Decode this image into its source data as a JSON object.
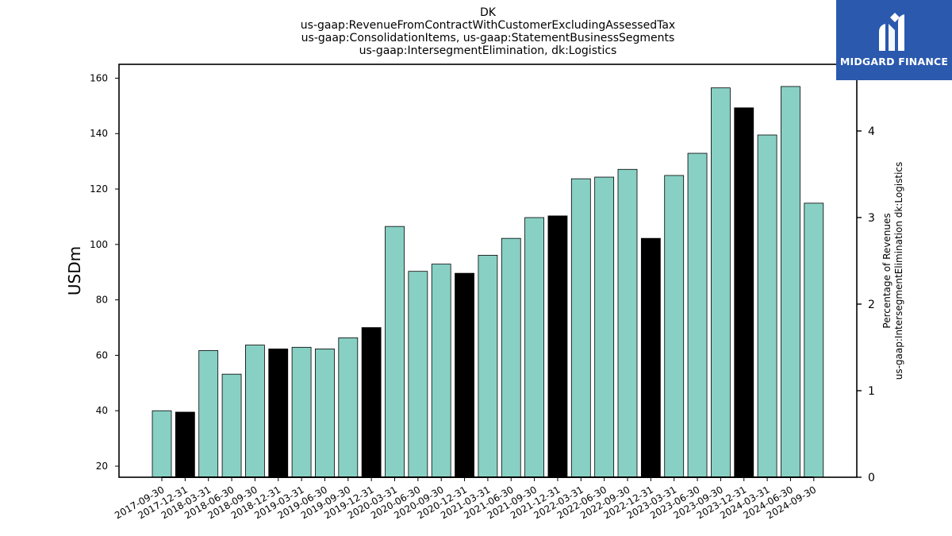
{
  "brand": {
    "name": "MIDGARD FINANCE",
    "bg_color": "#2a59ae"
  },
  "chart_data": {
    "type": "bar",
    "title_lines": [
      "DK",
      "us-gaap:RevenueFromContractWithCustomerExcludingAssessedTax",
      "us-gaap:ConsolidationItems, us-gaap:StatementBusinessSegments",
      "us-gaap:IntersegmentElimination, dk:Logistics"
    ],
    "ylabel": "USDm",
    "y2label_lines": [
      "Percentage of Revenues",
      "us-gaap:IntersegmentElimination dk:Logistics"
    ],
    "ylim": [
      16,
      165
    ],
    "yticks": [
      20,
      40,
      60,
      80,
      100,
      120,
      140,
      160
    ],
    "y2lim": [
      0,
      4.77
    ],
    "y2ticks": [
      0,
      1,
      2,
      3,
      4
    ],
    "grid": false,
    "colors": {
      "quarter": "#88d0c4",
      "year_end": "#000000",
      "edge": "#000000"
    },
    "categories": [
      "2017-09-30",
      "2017-12-31",
      "2018-03-31",
      "2018-06-30",
      "2018-09-30",
      "2018-12-31",
      "2019-03-31",
      "2019-06-30",
      "2019-09-30",
      "2019-12-31",
      "2020-03-31",
      "2020-06-30",
      "2020-09-30",
      "2020-12-31",
      "2021-03-31",
      "2021-06-30",
      "2021-09-30",
      "2021-12-31",
      "2022-03-31",
      "2022-06-30",
      "2022-09-30",
      "2022-12-31",
      "2023-03-31",
      "2023-06-30",
      "2023-09-30",
      "2023-12-31",
      "2024-03-31",
      "2024-06-30",
      "2024-09-30"
    ],
    "values": [
      40.0,
      39.5,
      61.7,
      53.2,
      63.7,
      62.3,
      62.9,
      62.3,
      66.3,
      70.0,
      106.5,
      90.3,
      92.9,
      89.6,
      96.1,
      102.2,
      109.7,
      110.3,
      123.7,
      124.3,
      127.1,
      102.2,
      124.9,
      132.9,
      156.5,
      149.3,
      139.5,
      157.0,
      114.9
    ],
    "year_end_flags": [
      false,
      true,
      false,
      false,
      false,
      true,
      false,
      false,
      false,
      true,
      false,
      false,
      false,
      true,
      false,
      false,
      false,
      true,
      false,
      false,
      false,
      true,
      false,
      false,
      false,
      true,
      false,
      false,
      false
    ],
    "percentage_values": [
      0,
      0,
      0,
      0,
      0,
      0,
      0,
      0,
      0,
      0,
      0,
      0,
      0,
      0,
      0,
      0,
      0,
      0,
      0,
      0,
      0,
      0,
      0,
      0,
      0,
      0,
      0,
      0,
      0
    ]
  }
}
